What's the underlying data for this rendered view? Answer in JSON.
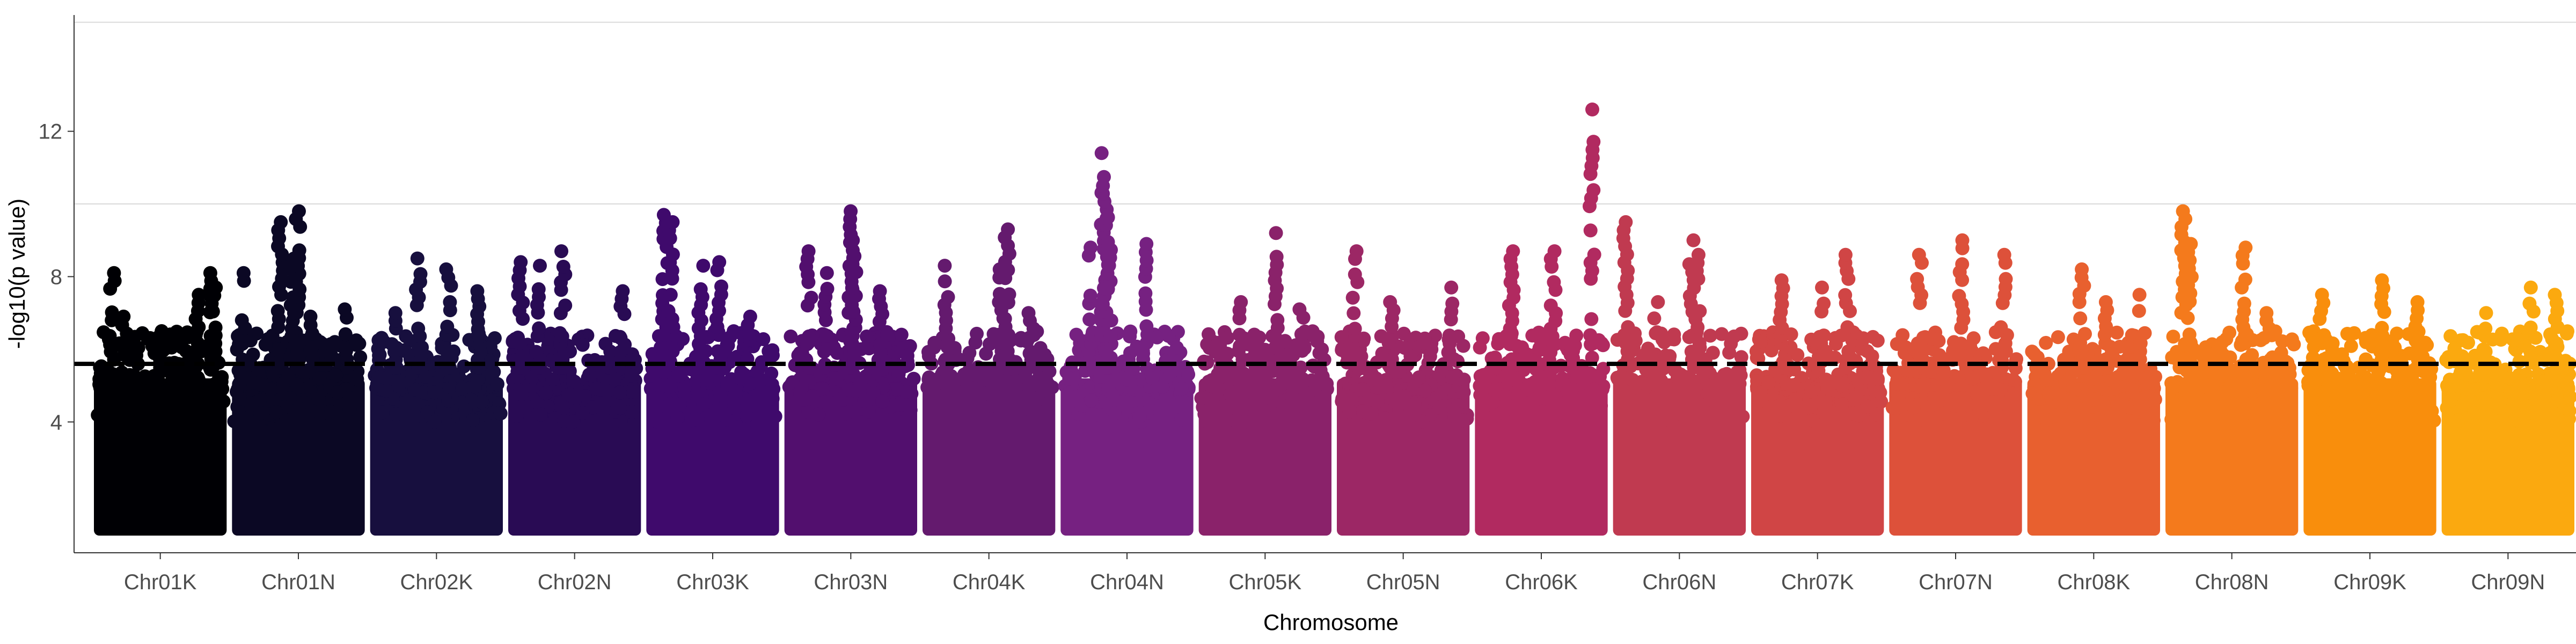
{
  "chart_data": {
    "type": "scatter",
    "subtype": "manhattan",
    "title": "",
    "xlabel": "Chromosome",
    "ylabel": "-log10(p value)",
    "ylim": [
      0.4,
      15.2
    ],
    "y_ticks": [
      4,
      8,
      12
    ],
    "gridlines_y": [
      10,
      15
    ],
    "threshold": 5.6,
    "threshold_style": "dashed black",
    "grid": "horizontal major only",
    "legend": "none",
    "palette": "inferno (black to yellow)",
    "categories": [
      "Chr01K",
      "Chr01N",
      "Chr02K",
      "Chr02N",
      "Chr03K",
      "Chr03N",
      "Chr04K",
      "Chr04N",
      "Chr05K",
      "Chr05N",
      "Chr06K",
      "Chr06N",
      "Chr07K",
      "Chr07N",
      "Chr08K",
      "Chr08N",
      "Chr09K",
      "Chr09N"
    ],
    "colors": [
      "#000004",
      "#0b0824",
      "#170f3e",
      "#290b54",
      "#3f0a6c",
      "#520f6e",
      "#641a6e",
      "#762181",
      "#8a226a",
      "#9c2765",
      "#b12a60",
      "#c03a50",
      "#d04545",
      "#dd513a",
      "#e8602f",
      "#f47a1c",
      "#f98e0c",
      "#fba90f"
    ],
    "series": [
      {
        "name": "Chr01K",
        "max": 8.1,
        "peaks": [
          [
            0.1,
            8.1
          ],
          [
            0.2,
            6.9
          ],
          [
            0.5,
            6.5
          ],
          [
            0.8,
            7.5
          ],
          [
            0.93,
            8.1
          ],
          [
            0.95,
            7.7
          ]
        ]
      },
      {
        "name": "Chr01N",
        "max": 9.8,
        "peaks": [
          [
            0.05,
            8.1
          ],
          [
            0.35,
            9.5
          ],
          [
            0.45,
            8.5
          ],
          [
            0.5,
            9.8
          ],
          [
            0.6,
            6.9
          ],
          [
            0.9,
            7.1
          ]
        ]
      },
      {
        "name": "Chr02K",
        "max": 8.5,
        "peaks": [
          [
            0.15,
            7.0
          ],
          [
            0.35,
            8.5
          ],
          [
            0.6,
            8.2
          ],
          [
            0.85,
            7.6
          ]
        ]
      },
      {
        "name": "Chr02N",
        "max": 8.7,
        "peaks": [
          [
            0.05,
            8.4
          ],
          [
            0.2,
            8.3
          ],
          [
            0.4,
            8.7
          ],
          [
            0.9,
            7.6
          ]
        ]
      },
      {
        "name": "Chr03K",
        "max": 9.7,
        "peaks": [
          [
            0.1,
            9.7
          ],
          [
            0.15,
            9.5
          ],
          [
            0.4,
            8.3
          ],
          [
            0.55,
            8.4
          ],
          [
            0.8,
            6.9
          ]
        ]
      },
      {
        "name": "Chr03N",
        "max": 9.8,
        "peaks": [
          [
            0.15,
            8.7
          ],
          [
            0.3,
            8.1
          ],
          [
            0.5,
            9.8
          ],
          [
            0.53,
            9.0
          ],
          [
            0.75,
            7.6
          ]
        ]
      },
      {
        "name": "Chr04K",
        "max": 9.3,
        "peaks": [
          [
            0.15,
            8.3
          ],
          [
            0.6,
            8.2
          ],
          [
            0.65,
            9.3
          ],
          [
            0.85,
            7.0
          ]
        ]
      },
      {
        "name": "Chr04N",
        "max": 11.4,
        "peaks": [
          [
            0.2,
            8.8
          ],
          [
            0.3,
            11.4
          ],
          [
            0.32,
            10.5
          ],
          [
            0.35,
            9.6
          ],
          [
            0.65,
            8.9
          ]
        ]
      },
      {
        "name": "Chr05K",
        "max": 9.2,
        "peaks": [
          [
            0.3,
            7.3
          ],
          [
            0.6,
            9.2
          ],
          [
            0.8,
            7.1
          ]
        ]
      },
      {
        "name": "Chr05N",
        "max": 8.7,
        "peaks": [
          [
            0.1,
            8.7
          ],
          [
            0.4,
            7.3
          ],
          [
            0.9,
            7.7
          ]
        ]
      },
      {
        "name": "Chr06K",
        "max": 12.6,
        "peaks": [
          [
            0.25,
            8.7
          ],
          [
            0.6,
            8.7
          ],
          [
            0.92,
            12.6
          ]
        ]
      },
      {
        "name": "Chr06N",
        "max": 9.5,
        "peaks": [
          [
            0.05,
            9.5
          ],
          [
            0.3,
            7.3
          ],
          [
            0.6,
            9.0
          ],
          [
            0.65,
            8.6
          ]
        ]
      },
      {
        "name": "Chr07K",
        "max": 8.6,
        "peaks": [
          [
            0.2,
            7.9
          ],
          [
            0.55,
            7.7
          ],
          [
            0.75,
            8.6
          ]
        ]
      },
      {
        "name": "Chr07N",
        "max": 9.0,
        "peaks": [
          [
            0.2,
            8.6
          ],
          [
            0.55,
            9.0
          ],
          [
            0.9,
            8.6
          ]
        ]
      },
      {
        "name": "Chr08K",
        "max": 8.2,
        "peaks": [
          [
            0.4,
            8.2
          ],
          [
            0.6,
            7.3
          ],
          [
            0.9,
            7.5
          ]
        ]
      },
      {
        "name": "Chr08N",
        "max": 9.8,
        "peaks": [
          [
            0.1,
            9.8
          ],
          [
            0.15,
            8.9
          ],
          [
            0.6,
            8.8
          ],
          [
            0.8,
            7.0
          ]
        ]
      },
      {
        "name": "Chr09K",
        "max": 7.9,
        "peaks": [
          [
            0.1,
            7.5
          ],
          [
            0.6,
            7.9
          ],
          [
            0.9,
            7.3
          ]
        ]
      },
      {
        "name": "Chr09N",
        "max": 7.7,
        "peaks": [
          [
            0.3,
            7.0
          ],
          [
            0.7,
            7.7
          ],
          [
            0.9,
            7.5
          ]
        ]
      }
    ]
  }
}
